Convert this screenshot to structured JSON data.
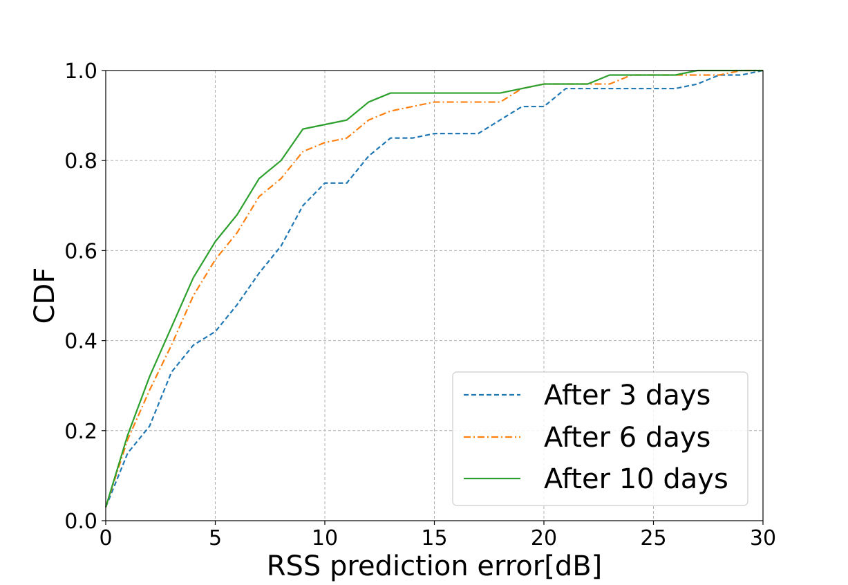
{
  "chart_data": {
    "type": "line",
    "title": "",
    "xlabel": "RSS prediction error[dB]",
    "ylabel": "CDF",
    "xlim": [
      0,
      30
    ],
    "ylim": [
      0,
      1.0
    ],
    "xticks": [
      "0",
      "5",
      "10",
      "15",
      "20",
      "25",
      "30"
    ],
    "yticks": [
      "0.0",
      "0.2",
      "0.4",
      "0.6",
      "0.8",
      "1.0"
    ],
    "grid": true,
    "legend_position": "lower-right",
    "series": [
      {
        "name": "After 3 days",
        "color": "#1f77b4",
        "style": "dashed",
        "x": [
          0,
          1,
          2,
          3,
          4,
          5,
          6,
          7,
          8,
          9,
          10,
          11,
          12,
          13,
          14,
          15,
          16,
          17,
          18,
          19,
          20,
          21,
          22,
          23,
          24,
          25,
          26,
          27,
          28,
          29,
          30
        ],
        "y": [
          0.03,
          0.15,
          0.21,
          0.33,
          0.39,
          0.42,
          0.48,
          0.55,
          0.61,
          0.7,
          0.75,
          0.75,
          0.81,
          0.85,
          0.85,
          0.86,
          0.86,
          0.86,
          0.89,
          0.92,
          0.92,
          0.96,
          0.96,
          0.96,
          0.96,
          0.96,
          0.96,
          0.97,
          0.99,
          0.99,
          1.0
        ]
      },
      {
        "name": "After 6 days",
        "color": "#ff7f0e",
        "style": "dashdot",
        "x": [
          0,
          1,
          2,
          3,
          4,
          5,
          6,
          7,
          8,
          9,
          10,
          11,
          12,
          13,
          14,
          15,
          16,
          17,
          18,
          19,
          20,
          21,
          22,
          23,
          24,
          25,
          26,
          27,
          28,
          29,
          30
        ],
        "y": [
          0.03,
          0.18,
          0.29,
          0.39,
          0.5,
          0.58,
          0.64,
          0.72,
          0.76,
          0.82,
          0.84,
          0.85,
          0.89,
          0.91,
          0.92,
          0.93,
          0.93,
          0.93,
          0.93,
          0.96,
          0.97,
          0.97,
          0.97,
          0.97,
          0.99,
          0.99,
          0.99,
          0.99,
          0.99,
          1.0,
          1.0
        ]
      },
      {
        "name": "After 10 days",
        "color": "#2ca02c",
        "style": "solid",
        "x": [
          0,
          1,
          2,
          3,
          4,
          5,
          6,
          7,
          8,
          9,
          10,
          11,
          12,
          13,
          14,
          15,
          16,
          17,
          18,
          19,
          20,
          21,
          22,
          23,
          24,
          25,
          26,
          27,
          28,
          29,
          30
        ],
        "y": [
          0.03,
          0.19,
          0.32,
          0.43,
          0.54,
          0.62,
          0.68,
          0.76,
          0.8,
          0.87,
          0.88,
          0.89,
          0.93,
          0.95,
          0.95,
          0.95,
          0.95,
          0.95,
          0.95,
          0.96,
          0.97,
          0.97,
          0.97,
          0.99,
          0.99,
          0.99,
          0.99,
          1.0,
          1.0,
          1.0,
          1.0
        ]
      }
    ]
  }
}
